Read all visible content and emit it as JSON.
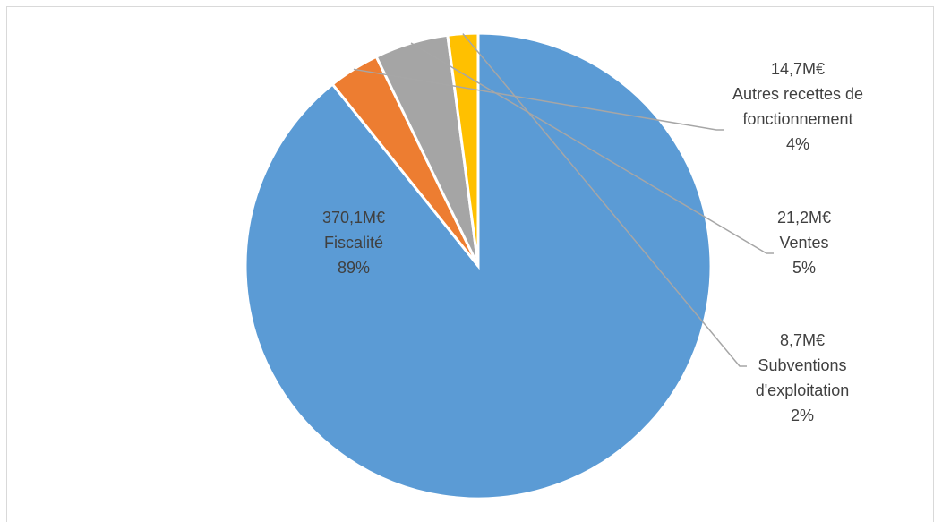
{
  "chart_data": {
    "type": "pie",
    "slices": [
      {
        "amount": "370,1M€",
        "name": "Fiscalité",
        "pct_label": "89%",
        "value": 370.1,
        "color": "#5b9bd5"
      },
      {
        "amount": "14,7M€",
        "name": "Autres recettes de fonctionnement",
        "name_lines": [
          "Autres recettes de",
          "fonctionnement"
        ],
        "pct_label": "4%",
        "value": 14.7,
        "color": "#ed7d31"
      },
      {
        "amount": "21,2M€",
        "name": "Ventes",
        "pct_label": "5%",
        "value": 21.2,
        "color": "#a5a5a5"
      },
      {
        "amount": "8,7M€",
        "name": "Subventions d'exploitation",
        "name_lines": [
          "Subventions",
          "d'exploitation"
        ],
        "pct_label": "2%",
        "value": 8.7,
        "color": "#ffc000"
      }
    ]
  }
}
